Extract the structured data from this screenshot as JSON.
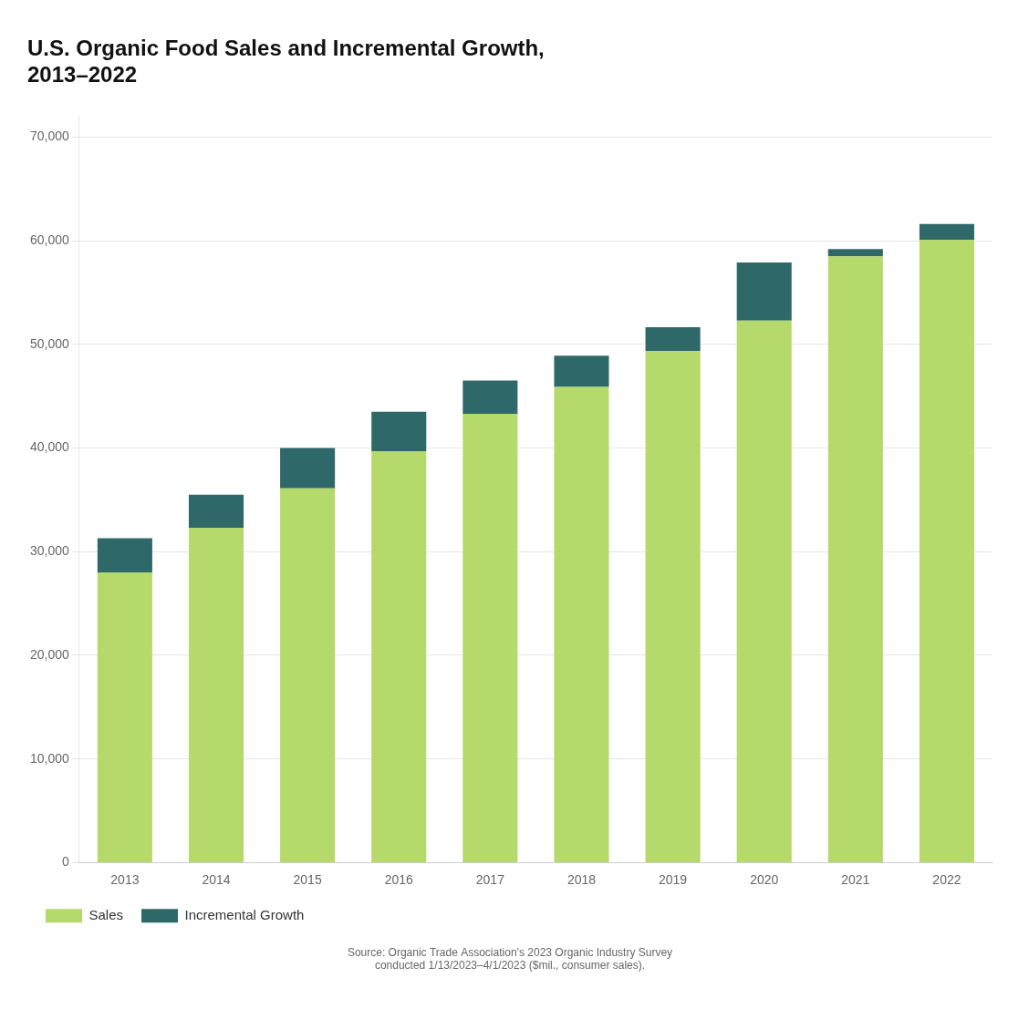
{
  "chart_data": {
    "type": "bar",
    "title": "U.S. Organic Food Sales and Incremental Growth,\n2013–2022",
    "categories": [
      "2013",
      "2014",
      "2015",
      "2016",
      "2017",
      "2018",
      "2019",
      "2020",
      "2021",
      "2022"
    ],
    "series": [
      {
        "name": "Sales",
        "color": "#b5d96b",
        "values": [
          28000,
          32300,
          36100,
          39700,
          43300,
          45900,
          49350,
          52300,
          58500,
          60100
        ]
      },
      {
        "name": "Incremental Growth",
        "color": "#2e6868",
        "values": [
          3300,
          3200,
          3900,
          3800,
          3200,
          3000,
          2300,
          5600,
          700,
          1500
        ]
      }
    ],
    "stacked": true,
    "ylim": [
      0,
      72000
    ],
    "yticks": [
      0,
      {
        "value": 10000,
        "label": "10,000"
      },
      {
        "value": 20000,
        "label": "20,000"
      },
      {
        "value": 30000,
        "label": "30,000"
      },
      {
        "value": 40000,
        "label": "40,000"
      },
      {
        "value": 50000,
        "label": "50,000"
      },
      {
        "value": 60000,
        "label": "60,000"
      },
      {
        "value": 70000,
        "label": "70,000"
      }
    ],
    "grid": true,
    "legend": "lower left",
    "annotations": [
      "Source: Organic Trade Association’s 2023 Organic Industry Survey\nconducted 1/13/2023–4/1/2023 ($mil., consumer sales)."
    ]
  }
}
